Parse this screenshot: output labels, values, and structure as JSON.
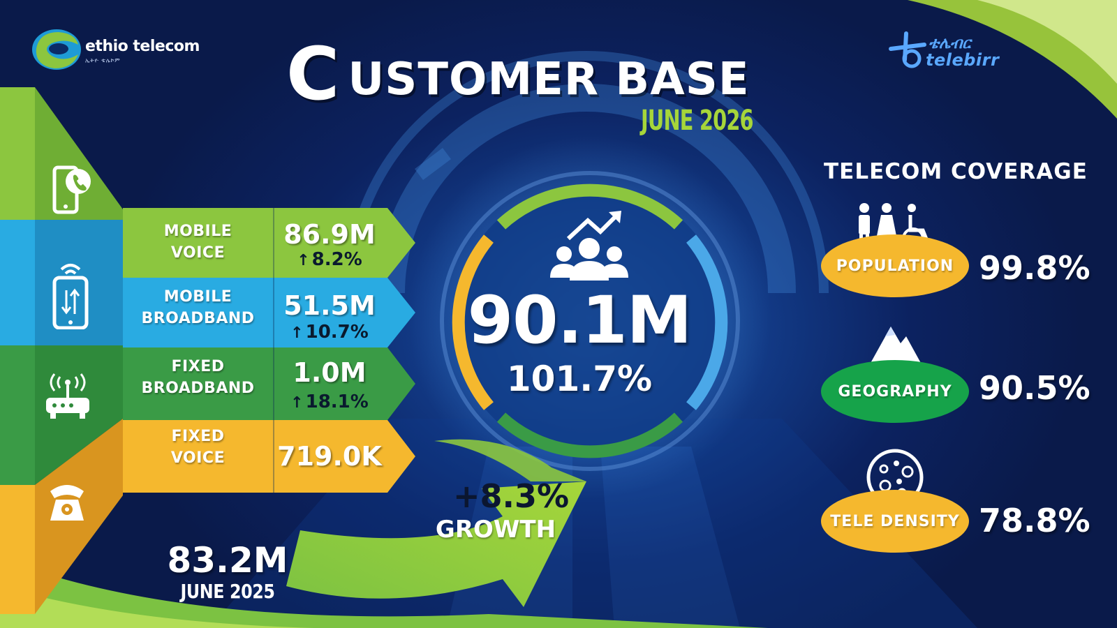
{
  "header": {
    "brand_name": "ethio telecom",
    "brand_subtitle": "ኢትዮ ቴሌኮም",
    "title_initial": "C",
    "title_rest": "USTOMER BASE",
    "report_date": "JUNE 2026",
    "partner_name_amharic": "ቴሌብር",
    "partner_name": "telebirr"
  },
  "services": [
    {
      "line1": "MOBILE",
      "line2": "VOICE",
      "value": "86.9M",
      "growth": "8.2%",
      "icon": "smartphone-call-icon",
      "color": "#8cc63f"
    },
    {
      "line1": "MOBILE",
      "line2": "BROADBAND",
      "value": "51.5M",
      "growth": "10.7%",
      "icon": "mobile-data-icon",
      "color": "#29abe2"
    },
    {
      "line1": "FIXED",
      "line2": "BROADBAND",
      "value": "1.0M",
      "growth": "18.1%",
      "icon": "wifi-router-icon",
      "color": "#3a9b46"
    },
    {
      "line1": "FIXED",
      "line2": "VOICE",
      "value": "719.0K",
      "icon": "landline-phone-icon",
      "color": "#f5b82e"
    }
  ],
  "total": {
    "value": "90.1M",
    "percent": "101.7%",
    "icon": "users-growth-icon"
  },
  "growth": {
    "percent": "+8.3%",
    "label": "GROWTH"
  },
  "previous": {
    "value": "83.2M",
    "date": "JUNE 2025"
  },
  "coverage": {
    "title": "TELECOM COVERAGE",
    "items": [
      {
        "label": "POPULATION",
        "value": "99.8%",
        "icon": "people-icon",
        "color": "#f5b82e"
      },
      {
        "label": "GEOGRAPHY",
        "value": "90.5%",
        "icon": "mountain-icon",
        "color": "#16a34a"
      },
      {
        "label": "TELE DENSITY",
        "value": "78.8%",
        "icon": "density-dots-icon",
        "color": "#f5b82e"
      }
    ]
  }
}
